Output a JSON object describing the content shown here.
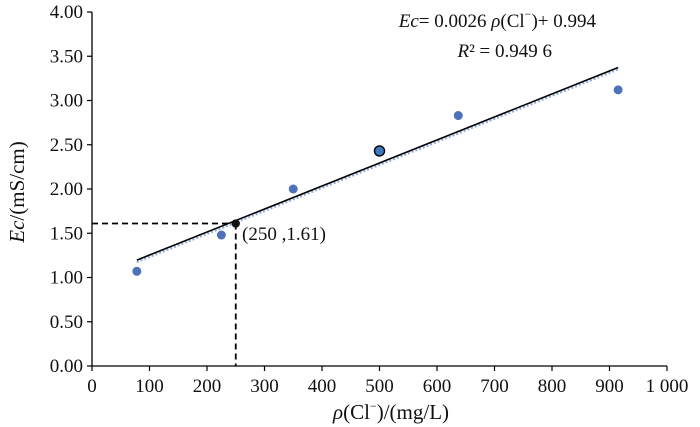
{
  "chart_data": {
    "type": "scatter",
    "xlabel_parts": [
      "ρ",
      "(Cl",
      "−",
      ")/(mg/L)"
    ],
    "ylabel_parts": [
      "Ec",
      "/(mS/cm)"
    ],
    "xlim": [
      0,
      1000
    ],
    "ylim": [
      0,
      4
    ],
    "xticks": [
      0,
      100,
      200,
      300,
      400,
      500,
      600,
      700,
      800,
      900,
      1000
    ],
    "xtick_labels": [
      "0",
      "100",
      "200",
      "300",
      "400",
      "500",
      "600",
      "700",
      "800",
      "900",
      "1 000"
    ],
    "yticks": [
      0,
      0.5,
      1,
      1.5,
      2,
      2.5,
      3,
      3.5,
      4
    ],
    "ytick_labels": [
      "0.00",
      "0.50",
      "1.00",
      "1.50",
      "2.00",
      "2.50",
      "3.00",
      "3.50",
      "4.00"
    ],
    "grid": false,
    "points": [
      {
        "x": 78,
        "y": 1.07
      },
      {
        "x": 225,
        "y": 1.48
      },
      {
        "x": 350,
        "y": 2.0
      },
      {
        "x": 500,
        "y": 2.43,
        "highlight": true
      },
      {
        "x": 637,
        "y": 2.83
      },
      {
        "x": 915,
        "y": 3.12
      }
    ],
    "fit": {
      "slope": 0.0026,
      "intercept": 0.994,
      "x_range": [
        78,
        915
      ]
    },
    "marker_point": {
      "x": 250,
      "y": 1.61,
      "label": "(250 ,1.61)"
    },
    "equation_parts": [
      "Ec",
      "= 0.0026 ",
      "ρ",
      "(Cl",
      "−",
      ")+ 0.994"
    ],
    "r2_parts": [
      "R",
      "² = 0.949 6"
    ],
    "colors": {
      "points": "#4f71b8",
      "highlight": "#3c79c0",
      "line": "#000000",
      "line_shadow": "#8eaadb",
      "marker": "#111111"
    }
  }
}
